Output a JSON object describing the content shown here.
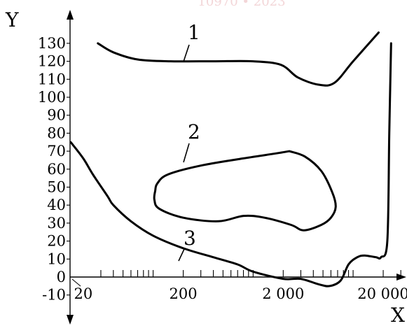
{
  "watermark": "10970 • 2023",
  "chart_data": {
    "type": "line",
    "xscale": "log",
    "xlabel": "X",
    "ylabel": "Y",
    "xlim": [
      15,
      40000
    ],
    "ylim": [
      -10,
      135
    ],
    "y_ticks": [
      -10,
      0,
      10,
      20,
      30,
      40,
      50,
      60,
      70,
      80,
      90,
      100,
      110,
      120,
      130
    ],
    "y_tick_labels": [
      "-10",
      "0",
      "10",
      "20",
      "30",
      "40",
      "50",
      "60",
      "70",
      "80",
      "90",
      "100",
      "110",
      "120",
      "130"
    ],
    "x_major_ticks": [
      20,
      200,
      2000,
      20000
    ],
    "x_tick_labels": [
      "20",
      "200",
      "2 000",
      "20 000"
    ],
    "x_minor_ticks": [
      30,
      40,
      50,
      60,
      70,
      80,
      90,
      100,
      300,
      400,
      500,
      600,
      700,
      800,
      900,
      1000,
      3000,
      4000,
      5000,
      6000,
      7000,
      8000,
      9000,
      10000,
      30000
    ],
    "grid": false,
    "series": [
      {
        "name": "1",
        "points": [
          [
            28,
            130
          ],
          [
            40,
            125
          ],
          [
            70,
            121
          ],
          [
            150,
            120
          ],
          [
            400,
            120
          ],
          [
            1000,
            120
          ],
          [
            1900,
            118
          ],
          [
            2800,
            111
          ],
          [
            4500,
            107
          ],
          [
            6500,
            108
          ],
          [
            10000,
            120
          ],
          [
            18000,
            136
          ]
        ]
      },
      {
        "name": "2",
        "closed": true,
        "points": [
          [
            2300,
            70
          ],
          [
            1800,
            69
          ],
          [
            800,
            66
          ],
          [
            300,
            62
          ],
          [
            140,
            57
          ],
          [
            110,
            52
          ],
          [
            105,
            48
          ],
          [
            103,
            43
          ],
          [
            115,
            38
          ],
          [
            200,
            33
          ],
          [
            450,
            31
          ],
          [
            800,
            34
          ],
          [
            1300,
            33
          ],
          [
            2400,
            29
          ],
          [
            3200,
            26
          ],
          [
            4800,
            29
          ],
          [
            6000,
            33
          ],
          [
            6700,
            39
          ],
          [
            6200,
            47
          ],
          [
            4800,
            59
          ],
          [
            3300,
            67
          ],
          [
            2300,
            70
          ]
        ]
      },
      {
        "name": "3",
        "points": [
          [
            15,
            75
          ],
          [
            20,
            66
          ],
          [
            25,
            57
          ],
          [
            35,
            45
          ],
          [
            40,
            40
          ],
          [
            60,
            31
          ],
          [
            100,
            23
          ],
          [
            200,
            16
          ],
          [
            400,
            11
          ],
          [
            700,
            7
          ],
          [
            1000,
            3
          ],
          [
            2000,
            -1
          ],
          [
            3000,
            -1
          ],
          [
            4500,
            -4
          ],
          [
            5800,
            -5
          ],
          [
            7500,
            -2
          ],
          [
            9000,
            7
          ],
          [
            11000,
            11
          ],
          [
            13000,
            12
          ],
          [
            17000,
            11
          ],
          [
            19000,
            11
          ],
          [
            22000,
            20
          ],
          [
            23000,
            80
          ],
          [
            24000,
            130
          ]
        ]
      }
    ]
  }
}
